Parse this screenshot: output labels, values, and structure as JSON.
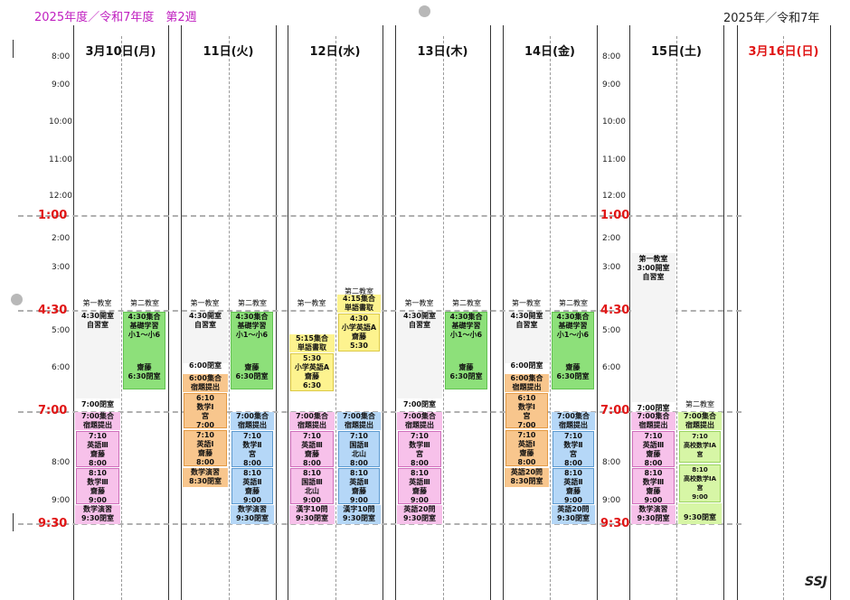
{
  "header": {
    "left_title": "2025年度／令和7年度　第2週",
    "right_title": "2025年／令和7年"
  },
  "days": [
    "3月10日(月)",
    "11日(火)",
    "12日(水)",
    "13日(木)",
    "14日(金)",
    "15日(土)",
    "3月16日(日)"
  ],
  "colors": {
    "sunday": "#e01515",
    "accent_time": "#e01515",
    "title": "#c020c0"
  },
  "times_small": [
    "8:00",
    "9:00",
    "10:00",
    "11:00",
    "12:00",
    "2:00",
    "3:00",
    "5:00",
    "6:00",
    "8:00",
    "9:00"
  ],
  "times_big": [
    "1:00",
    "4:30",
    "7:00",
    "9:30"
  ],
  "room1": "第一教室",
  "room2": "第二教室",
  "blocks": {
    "mon": {
      "a": [
        "4:30開室",
        "自習室"
      ],
      "b": [
        "7:00閉室"
      ],
      "c": [
        "4:30集合",
        "基礎学習",
        "小1～小6"
      ],
      "d": [
        "齋藤",
        "6:30閉室"
      ],
      "e": [
        "7:00集合",
        "宿題提出"
      ],
      "f": [
        "7:10",
        "英語Ⅲ",
        "齋藤",
        "8:00"
      ],
      "g": [
        "8:10",
        "数学Ⅲ",
        "齋藤",
        "9:00"
      ],
      "h": [
        "数学演習",
        "9:30閉室"
      ]
    },
    "tue": {
      "a": [
        "4:30開室",
        "自習室"
      ],
      "b": [
        "6:00閉室"
      ],
      "c": [
        "6:00集合",
        "宿題提出"
      ],
      "d": [
        "6:10",
        "数学Ⅰ",
        "宮",
        "7:00"
      ],
      "e": [
        "7:10",
        "英語Ⅰ",
        "齋藤",
        "8:00"
      ],
      "f": [
        "数学演習",
        "8:30閉室"
      ],
      "g": [
        "4:30集合",
        "基礎学習",
        "小1～小6"
      ],
      "h": [
        "齋藤",
        "6:30閉室"
      ],
      "i": [
        "7:00集合",
        "宿題提出"
      ],
      "j": [
        "7:10",
        "数学Ⅱ",
        "宮",
        "8:00"
      ],
      "k": [
        "8:10",
        "英語Ⅱ",
        "齋藤",
        "9:00"
      ],
      "l": [
        "数学演習",
        "9:30閉室"
      ]
    },
    "wed": {
      "a": [
        "5:15集合",
        "単語書取"
      ],
      "b": [
        "5:30",
        "小学英語A",
        "齋藤",
        "6:30"
      ],
      "c": [
        "4:15集合",
        "単語書取"
      ],
      "d": [
        "4:30",
        "小学英語A",
        "齋藤",
        "5:30"
      ],
      "e": [
        "7:00集合",
        "宿題提出"
      ],
      "f": [
        "7:10",
        "英語Ⅲ",
        "齋藤",
        "8:00"
      ],
      "g": [
        "8:10",
        "国語Ⅲ",
        "北山",
        "9:00"
      ],
      "h": [
        "漢字10問",
        "9:30閉室"
      ],
      "i": [
        "7:00集合",
        "宿題提出"
      ],
      "j": [
        "7:10",
        "国語Ⅱ",
        "北山",
        "8:00"
      ],
      "k": [
        "8:10",
        "英語Ⅱ",
        "齋藤",
        "9:00"
      ],
      "l": [
        "漢字10問",
        "9:30閉室"
      ]
    },
    "thu": {
      "a": [
        "4:30開室",
        "自習室"
      ],
      "b": [
        "7:00閉室"
      ],
      "c": [
        "4:30集合",
        "基礎学習",
        "小1～小6"
      ],
      "d": [
        "齋藤",
        "6:30閉室"
      ],
      "e": [
        "7:00集合",
        "宿題提出"
      ],
      "f": [
        "7:10",
        "数学Ⅲ",
        "宮",
        "8:00"
      ],
      "g": [
        "8:10",
        "英語Ⅲ",
        "齋藤",
        "9:00"
      ],
      "h": [
        "英語20問",
        "9:30閉室"
      ]
    },
    "fri": {
      "a": [
        "4:30開室",
        "自習室"
      ],
      "b": [
        "6:00閉室"
      ],
      "c": [
        "6:00集合",
        "宿題提出"
      ],
      "d": [
        "6:10",
        "数学Ⅰ",
        "宮",
        "7:00"
      ],
      "e": [
        "7:10",
        "英語Ⅰ",
        "齋藤",
        "8:00"
      ],
      "f": [
        "英語20問",
        "8:30閉室"
      ],
      "g": [
        "4:30集合",
        "基礎学習",
        "小1～小6"
      ],
      "h": [
        "齋藤",
        "6:30閉室"
      ],
      "i": [
        "7:00集合",
        "宿題提出"
      ],
      "j": [
        "7:10",
        "数学Ⅱ",
        "宮",
        "8:00"
      ],
      "k": [
        "8:10",
        "英語Ⅱ",
        "齋藤",
        "9:00"
      ],
      "l": [
        "英語20問",
        "9:30閉室"
      ]
    },
    "sat": {
      "a": [
        "第一教室",
        "3:00開室",
        "自習室"
      ],
      "b": [
        "7:00閉室"
      ],
      "c": [
        "7:00集合",
        "宿題提出"
      ],
      "d": [
        "7:10",
        "英語Ⅲ",
        "齋藤",
        "8:00"
      ],
      "e": [
        "8:10",
        "数学Ⅲ",
        "齋藤",
        "9:00"
      ],
      "f": [
        "数学演習",
        "9:30閉室"
      ],
      "g": [
        "7:00集合",
        "宿題提出"
      ],
      "h": [
        "7:10",
        "高校数学ⅠA",
        "宮",
        "8:00"
      ],
      "i": [
        "8:10",
        "高校数学ⅠA",
        "宮",
        "9:00"
      ],
      "j": [
        "9:30閉室"
      ]
    }
  },
  "signature": "SSJ"
}
